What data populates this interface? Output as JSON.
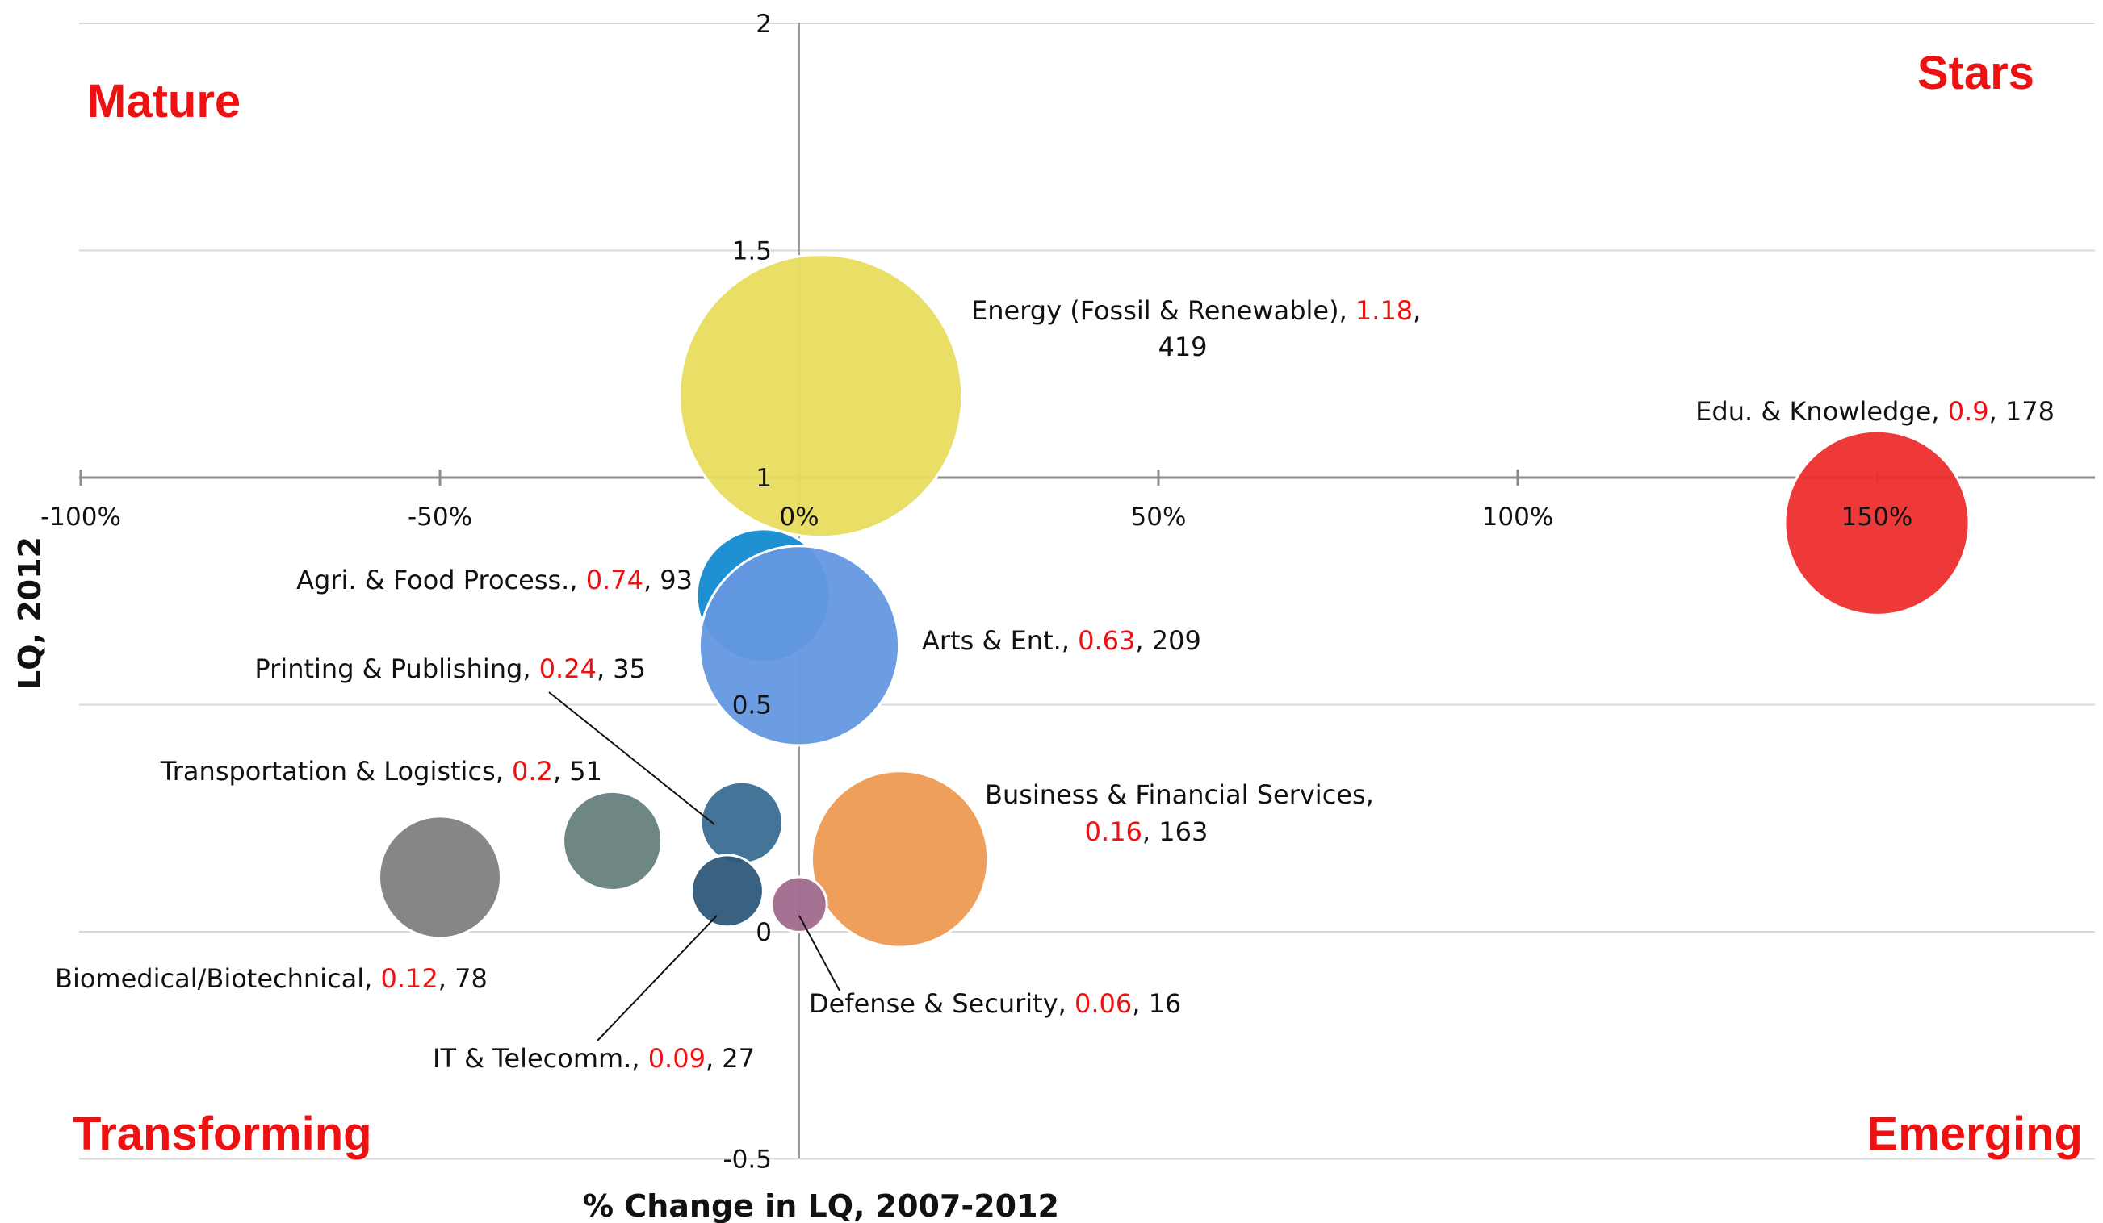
{
  "chart_data": {
    "type": "scatter",
    "subtype": "bubble",
    "title": "",
    "xlabel": "% Change in LQ, 2007-2012",
    "ylabel": "LQ, 2012",
    "xlim": [
      -1.0,
      1.8
    ],
    "ylim": [
      -0.5,
      2.0
    ],
    "x_ticks": [
      {
        "value": -1.0,
        "label": "-100%"
      },
      {
        "value": -0.5,
        "label": "-50%"
      },
      {
        "value": 0.0,
        "label": "0%"
      },
      {
        "value": 0.5,
        "label": "50%"
      },
      {
        "value": 1.0,
        "label": "100%"
      },
      {
        "value": 1.5,
        "label": "150%"
      }
    ],
    "y_ticks": [
      {
        "value": -0.5,
        "label": "-0.5"
      },
      {
        "value": 0,
        "label": "0"
      },
      {
        "value": 0.5,
        "label": "0.5"
      },
      {
        "value": 1,
        "label": "1"
      },
      {
        "value": 1.5,
        "label": "1.5"
      },
      {
        "value": 2,
        "label": "2"
      }
    ],
    "gridlines": true,
    "quadrants": {
      "top_left": "Mature",
      "top_right": "Stars",
      "bottom_left": "Transforming",
      "bottom_right": "Emerging"
    },
    "points": [
      {
        "name": "Energy (Fossil & Renewable)",
        "name_line2": "",
        "lq": "1.18",
        "size": "419",
        "x": 0.03,
        "y": 1.18,
        "color": "#e8dc5e"
      },
      {
        "name": "Edu. & Knowledge",
        "name_line2": "",
        "lq": "0.9",
        "size": "178",
        "x": 1.5,
        "y": 0.9,
        "color": "#ee2e2e"
      },
      {
        "name": "Agri. & Food Process.",
        "name_line2": "",
        "lq": "0.74",
        "size": "93",
        "x": -0.05,
        "y": 0.74,
        "color": "#138ad0"
      },
      {
        "name": "Arts & Ent.",
        "name_line2": "",
        "lq": "0.63",
        "size": "209",
        "x": 0.0,
        "y": 0.63,
        "color": "#6498e0"
      },
      {
        "name": "Printing & Publishing",
        "name_line2": "",
        "lq": "0.24",
        "size": "35",
        "x": -0.08,
        "y": 0.24,
        "color": "#3a6e92"
      },
      {
        "name": "Transportation & Logistics",
        "name_line2": "",
        "lq": "0.2",
        "size": "51",
        "x": -0.26,
        "y": 0.2,
        "color": "#66807d"
      },
      {
        "name": "Business & Financial Services,",
        "name_line2": "",
        "lq": "0.16",
        "size": "163",
        "x": 0.14,
        "y": 0.16,
        "color": "#ed9a52"
      },
      {
        "name": "Biomedical/Biotechnical",
        "name_line2": "",
        "lq": "0.12",
        "size": "78",
        "x": -0.5,
        "y": 0.12,
        "color": "#7f7f7f"
      },
      {
        "name": "IT & Telecomm.",
        "name_line2": "",
        "lq": "0.09",
        "size": "27",
        "x": -0.1,
        "y": 0.09,
        "color": "#2e597a"
      },
      {
        "name": "Defense & Security",
        "name_line2": "",
        "lq": "0.06",
        "size": "16",
        "x": 0.0,
        "y": 0.06,
        "color": "#a06a8e"
      }
    ]
  }
}
